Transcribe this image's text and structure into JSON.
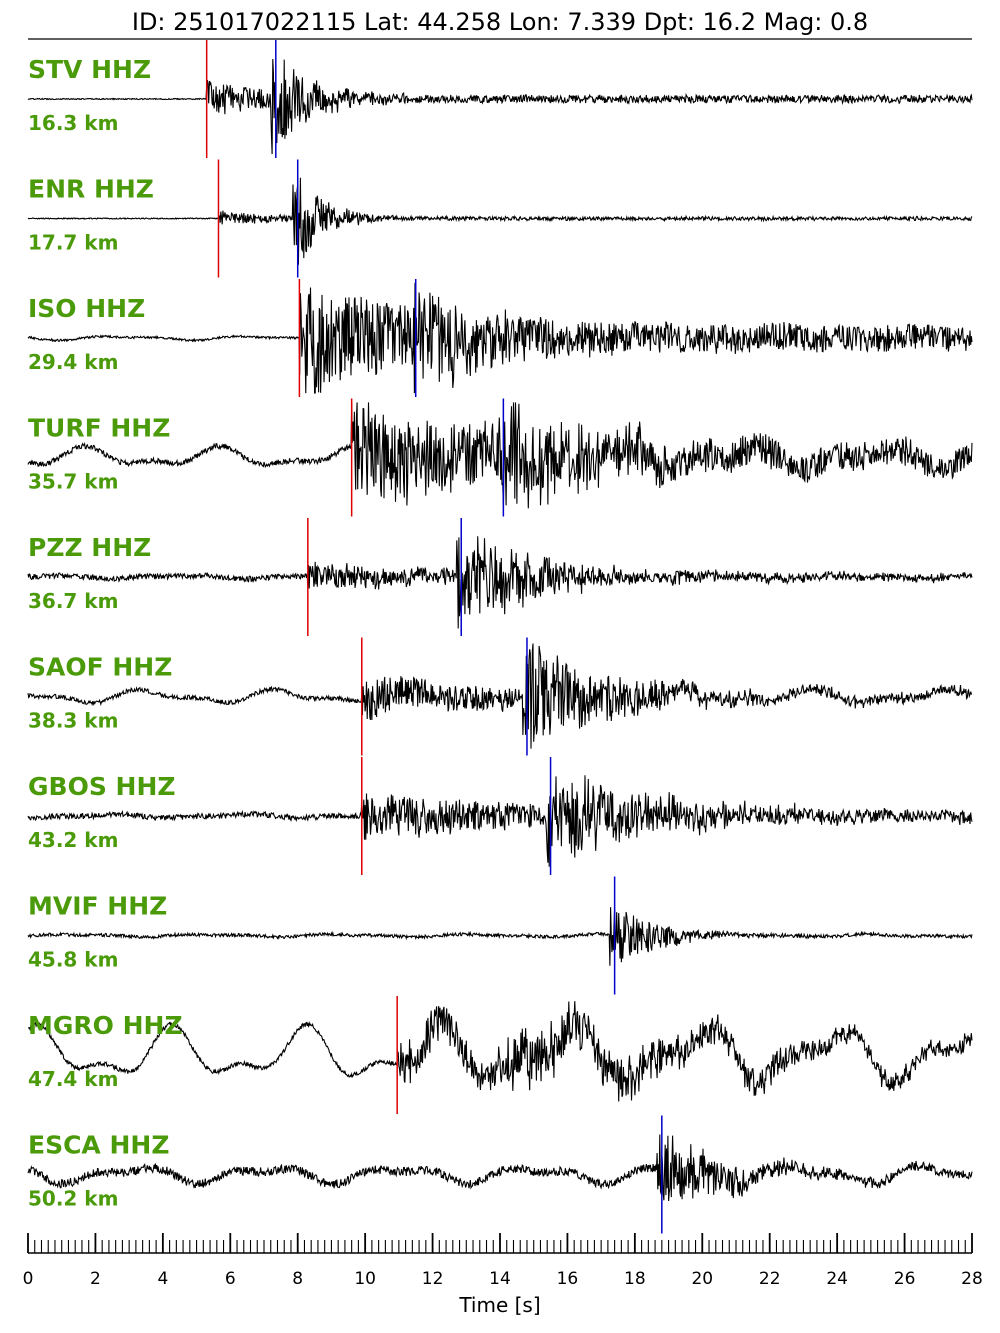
{
  "header": {
    "title": "ID: 251017022115 Lat:  44.258 Lon:   7.339 Dpt:    16.2 Mag:   0.8"
  },
  "colors": {
    "label": "#4a9a0a",
    "p_pick": "#dd0000",
    "s_pick": "#0000cc",
    "trace": "#000000"
  },
  "chart_data": {
    "type": "line",
    "title": "ID: 251017022115 Lat:  44.258 Lon:   7.339 Dpt:    16.2 Mag:   0.8",
    "xlabel": "Time [s]",
    "ylabel": "",
    "xlim": [
      0,
      28
    ],
    "x_ticks": [
      "0",
      "2",
      "4",
      "6",
      "8",
      "10",
      "12",
      "14",
      "16",
      "18",
      "20",
      "22",
      "24",
      "26",
      "28"
    ],
    "grid": false,
    "traces": [
      {
        "station": "STV HHZ",
        "distance": "16.3 km",
        "p_pick": 5.3,
        "s_pick": 7.35,
        "noise": 0.01,
        "drift": 0.0,
        "p_amp": 0.28,
        "s_amp": 0.95,
        "coda": 3.0
      },
      {
        "station": "ENR HHZ",
        "distance": "17.7 km",
        "p_pick": 5.65,
        "s_pick": 8.0,
        "noise": 0.01,
        "drift": 0.0,
        "p_amp": 0.12,
        "s_amp": 0.85,
        "coda": 2.5
      },
      {
        "station": "ISO HHZ",
        "distance": "29.4 km",
        "p_pick": 8.05,
        "s_pick": 11.5,
        "noise": 0.02,
        "drift": 0.06,
        "p_amp": 0.9,
        "s_amp": 0.75,
        "coda": 6.0
      },
      {
        "station": "TURF HHZ",
        "distance": "35.7 km",
        "p_pick": 9.6,
        "s_pick": 14.1,
        "noise": 0.05,
        "drift": 0.3,
        "p_amp": 0.8,
        "s_amp": 0.8,
        "coda": 8.0
      },
      {
        "station": "PZZ HHZ",
        "distance": "36.7 km",
        "p_pick": 8.3,
        "s_pick": 12.85,
        "noise": 0.05,
        "drift": 0.05,
        "p_amp": 0.2,
        "s_amp": 0.95,
        "coda": 7.0
      },
      {
        "station": "SAOF HHZ",
        "distance": "38.3 km",
        "p_pick": 9.9,
        "s_pick": 14.8,
        "noise": 0.04,
        "drift": 0.2,
        "p_amp": 0.3,
        "s_amp": 0.95,
        "coda": 7.0
      },
      {
        "station": "GBOS HHZ",
        "distance": "43.2 km",
        "p_pick": 9.9,
        "s_pick": 15.5,
        "noise": 0.05,
        "drift": 0.06,
        "p_amp": 0.35,
        "s_amp": 0.95,
        "coda": 8.0
      },
      {
        "station": "MVIF HHZ",
        "distance": "45.8 km",
        "p_pick": null,
        "s_pick": 17.4,
        "noise": 0.03,
        "drift": 0.04,
        "p_amp": 0.0,
        "s_amp": 0.6,
        "coda": 4.0
      },
      {
        "station": "MGRO HHZ",
        "distance": "47.4 km",
        "p_pick": 10.95,
        "s_pick": null,
        "noise": 0.04,
        "drift": 0.8,
        "p_amp": 0.35,
        "s_amp": 0.8,
        "coda": 8.0
      },
      {
        "station": "ESCA HHZ",
        "distance": "50.2 km",
        "p_pick": null,
        "s_pick": 18.8,
        "noise": 0.08,
        "drift": 0.25,
        "p_amp": 0.4,
        "s_amp": 0.7,
        "coda": 6.0
      }
    ]
  }
}
